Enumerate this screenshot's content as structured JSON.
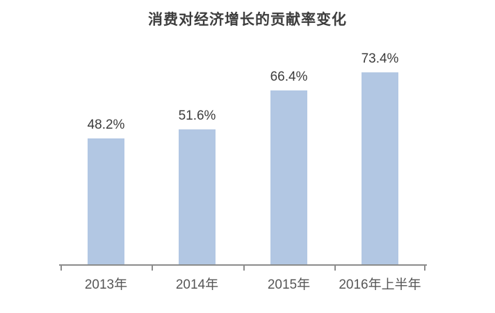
{
  "chart_data": {
    "type": "bar",
    "title": "消费对经济增长的贡献率变化",
    "categories": [
      "2013年",
      "2014年",
      "2015年",
      "2016年上半年"
    ],
    "values": [
      48.2,
      51.6,
      66.4,
      73.4
    ],
    "value_labels": [
      "48.2%",
      "51.6%",
      "66.4%",
      "73.4%"
    ],
    "xlabel": "",
    "ylabel": "",
    "ylim": [
      0,
      85
    ],
    "grid": false,
    "legend": false,
    "y_axis_visible": false,
    "colors": {
      "bar_fill": "#b2c7e3",
      "axis_line": "#8b8b8b",
      "title_text": "#3d3d3d",
      "value_label_text": "#3c3c3c",
      "tick_label_text": "#565656",
      "background": "#ffffff"
    }
  }
}
